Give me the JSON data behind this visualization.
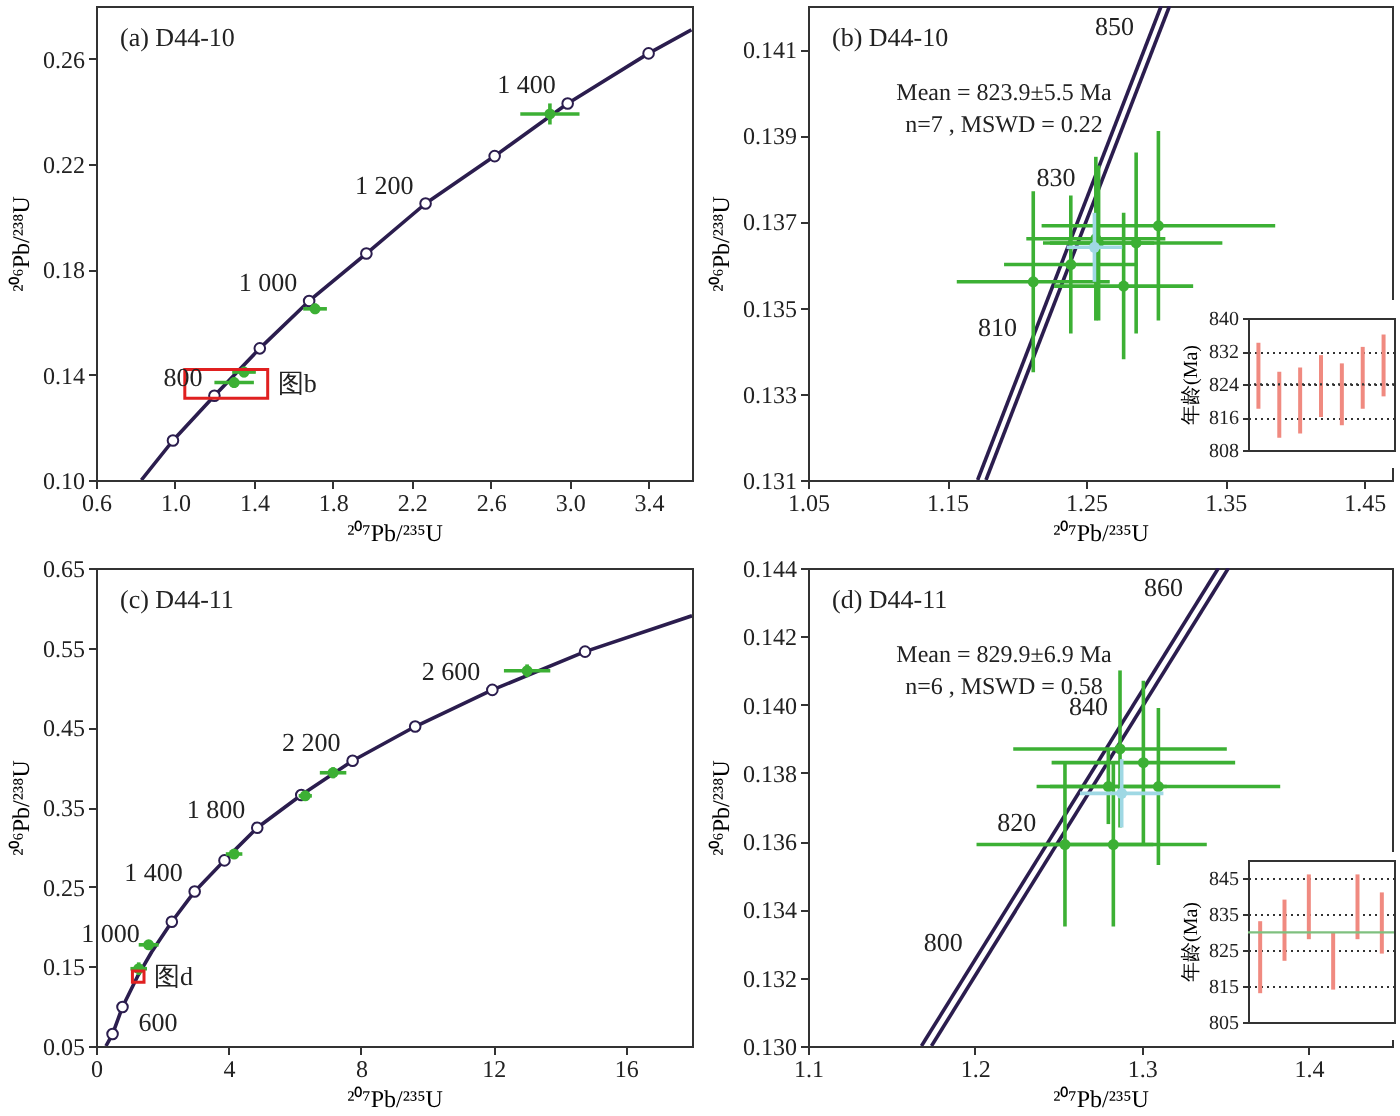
{
  "chart_data": [
    {
      "type": "line",
      "title": "(a) D44-10",
      "xlabel": "²⁰⁷Pb/²³⁵U",
      "ylabel": "²⁰⁶Pb/²³⁸U",
      "xlim": [
        0.6,
        3.62
      ],
      "ylim": [
        0.1,
        0.28
      ],
      "xticks": [
        0.6,
        {
          "value": 1,
          "label": "1.0"
        },
        1.4,
        1.8,
        2.2,
        2.6,
        {
          "value": 3,
          "label": "3.0"
        },
        3.4
      ],
      "yticks": [
        {
          "value": 0.1,
          "label": "0.10"
        },
        0.14,
        0.18,
        0.22,
        0.26
      ],
      "series": [
        {
          "type": "line",
          "color": "#2b1d4e",
          "x": [
            0.83,
            0.99,
            1.2,
            1.43,
            1.68,
            1.97,
            2.27,
            2.62,
            2.99,
            3.4,
            3.617
          ],
          "values": [
            0.1,
            0.115,
            0.132,
            0.15,
            0.168,
            0.186,
            0.205,
            0.223,
            0.243,
            0.262,
            0.271
          ]
        },
        {
          "type": "scatter",
          "marker": "circle",
          "color": "#2b1d4e",
          "x": [
            0.99,
            1.2,
            1.43,
            1.68,
            1.97,
            2.27,
            2.62,
            2.99,
            3.4
          ],
          "values": [
            0.115,
            0.132,
            0.15,
            0.168,
            0.186,
            0.205,
            0.223,
            0.243,
            0.262
          ]
        },
        {
          "type": "scatter",
          "color": "#3cb034",
          "x": [
            2.9,
            1.71,
            1.3,
            1.35
          ],
          "values": [
            0.239,
            0.165,
            0.137,
            0.141
          ],
          "xerrors": [
            0.15,
            0.06,
            0.1,
            0.06
          ],
          "errors": [
            0.004,
            0.002,
            0.002,
            0.002
          ]
        }
      ],
      "annotations": [
        "图b",
        {
          "text": "800",
          "x": 1.2,
          "y": 0.132
        },
        {
          "text": "1 000",
          "x": 1.68,
          "y": 0.168
        },
        {
          "text": "1 200",
          "x": 2.27,
          "y": 0.205
        },
        {
          "text": "1 400",
          "x": 2.99,
          "y": 0.243
        }
      ]
    },
    {
      "type": "line",
      "title": "(b) D44-10",
      "xlabel": "²⁰⁷Pb/²³⁵U",
      "ylabel": "²⁰⁶Pb/²³⁸U",
      "xlim": [
        1.05,
        1.47
      ],
      "ylim": [
        0.131,
        0.142
      ],
      "xticks": [
        1.05,
        1.15,
        1.25,
        1.35,
        1.45
      ],
      "yticks": [
        0.131,
        0.133,
        0.135,
        0.137,
        0.139,
        0.141
      ],
      "series": [
        {
          "type": "line",
          "color": "#2b1d4e",
          "x": [
            1.172,
            1.304
          ],
          "values": [
            0.131,
            0.142
          ]
        },
        {
          "type": "line",
          "color": "#2b1d4e",
          "x": [
            1.178,
            1.31
          ],
          "values": [
            0.131,
            0.142
          ]
        },
        {
          "type": "scatter",
          "color": "#3cb034",
          "x": [
            1.212,
            1.286,
            1.257,
            1.302,
            1.239,
            1.277,
            1.259
          ],
          "values": [
            0.1356,
            0.1365,
            0.1366,
            0.1369,
            0.136,
            0.1355,
            0.1365
          ],
          "xerrors": [
            0.055,
            0.062,
            0.05,
            0.084,
            0.048,
            0.05,
            0.04
          ],
          "errors": [
            0.0021,
            0.0021,
            0.0019,
            0.0022,
            0.0016,
            0.0017,
            0.0018
          ]
        },
        {
          "type": "scatter",
          "color": "#9fd8e4",
          "x": [
            1.256
          ],
          "values": [
            0.1364
          ],
          "xerrors": [
            0.02
          ],
          "errors": [
            0.0008
          ]
        }
      ],
      "annotations": [
        "Mean = 823.9±5.5 Ma",
        "n=7 , MSWD = 0.22",
        {
          "text": "850",
          "x": 1.293,
          "y": 0.1411
        },
        {
          "text": "830",
          "x": 1.251,
          "y": 0.1376
        },
        {
          "text": "810",
          "x": 1.209,
          "y": 0.1341
        }
      ]
    },
    {
      "type": "line",
      "title": "(c) D44-11",
      "xlabel": "²⁰⁷Pb/²³⁵U",
      "ylabel": "²⁰⁶Pb/²³⁸U",
      "xlim": [
        0,
        18
      ],
      "ylim": [
        0.05,
        0.65
      ],
      "xticks": [
        0,
        4,
        8,
        12,
        16
      ],
      "yticks": [
        0.05,
        0.15,
        0.25,
        0.35,
        0.45,
        0.55,
        0.65
      ],
      "series": [
        {
          "type": "line",
          "color": "#2b1d4e",
          "x": [
            0.3,
            0.5,
            0.8,
            1.25,
            1.68,
            2.29,
            2.98,
            3.88,
            4.87,
            6.2,
            7.75,
            9.64,
            11.97,
            14.77,
            18
          ],
          "values": [
            0.05,
            0.065,
            0.099,
            0.137,
            0.168,
            0.206,
            0.244,
            0.283,
            0.324,
            0.365,
            0.408,
            0.451,
            0.497,
            0.545,
            0.59
          ]
        },
        {
          "type": "scatter",
          "marker": "circle",
          "color": "#2b1d4e",
          "x": [
            0.5,
            0.8,
            2.29,
            2.98,
            3.88,
            4.87,
            6.2,
            7.75,
            9.64,
            11.97,
            14.77
          ],
          "values": [
            0.065,
            0.099,
            0.206,
            0.244,
            0.283,
            0.324,
            0.365,
            0.408,
            0.451,
            0.497,
            0.545
          ]
        },
        {
          "type": "scatter",
          "color": "#3cb034",
          "x": [
            1.59,
            1.29,
            4.17,
            6.32,
            7.16,
            13.02
          ],
          "values": [
            0.177,
            0.147,
            0.291,
            0.364,
            0.393,
            0.521
          ],
          "xerrors": [
            0.3,
            0.25,
            0.25,
            0.2,
            0.4,
            0.7
          ],
          "errors": [
            0.006,
            0.008,
            0.004,
            0.004,
            0.007,
            0.008
          ]
        }
      ],
      "annotations": [
        "图d",
        {
          "text": "600",
          "x": 0.8,
          "y": 0.099
        },
        {
          "text": "1 000",
          "x": 1.68,
          "y": 0.168
        },
        {
          "text": "1 400",
          "x": 2.98,
          "y": 0.244
        },
        {
          "text": "1 800",
          "x": 4.87,
          "y": 0.324
        },
        {
          "text": "2 200",
          "x": 7.75,
          "y": 0.408
        },
        {
          "text": "2 600",
          "x": 11.97,
          "y": 0.497
        }
      ]
    },
    {
      "type": "line",
      "title": "(d) D44-11",
      "xlabel": "²⁰⁷Pb/²³⁵U",
      "ylabel": "²⁰⁶Pb/²³⁸U",
      "xlim": [
        1.1,
        1.45
      ],
      "ylim": [
        0.13,
        0.144
      ],
      "xticks": [
        1.1,
        1.2,
        1.3,
        1.4
      ],
      "yticks": [
        {
          "value": 0.13,
          "label": "0.130"
        },
        0.132,
        0.134,
        0.136,
        0.138,
        {
          "value": 0.14,
          "label": "0.140"
        },
        0.142,
        0.144
      ],
      "series": [
        {
          "type": "line",
          "color": "#2b1d4e",
          "x": [
            1.168,
            1.346
          ],
          "values": [
            0.13,
            0.144
          ]
        },
        {
          "type": "line",
          "color": "#2b1d4e",
          "x": [
            1.174,
            1.352
          ],
          "values": [
            0.13,
            0.144
          ]
        },
        {
          "type": "scatter",
          "color": "#3cb034",
          "x": [
            1.254,
            1.287,
            1.31,
            1.283,
            1.301,
            1.28
          ],
          "values": [
            0.1359,
            0.1387,
            0.1376,
            0.1359,
            0.1383,
            0.1376
          ],
          "xerrors": [
            0.053,
            0.064,
            0.073,
            0.056,
            0.055,
            0.035
          ],
          "errors": [
            0.0024,
            0.0023,
            0.0023,
            0.0024,
            0.0024,
            0.0011
          ]
        },
        {
          "type": "scatter",
          "color": "#9fd8e4",
          "x": [
            1.288
          ],
          "values": [
            0.1374
          ],
          "xerrors": [
            0.025
          ],
          "errors": [
            0.001
          ]
        }
      ],
      "annotations": [
        "Mean = 829.9±6.9 Ma",
        "n=6 , MSWD = 0.58",
        {
          "text": "860",
          "x": 1.332,
          "y": 0.1429
        },
        {
          "text": "840",
          "x": 1.287,
          "y": 0.1394
        },
        {
          "text": "820",
          "x": 1.244,
          "y": 0.136
        },
        {
          "text": "800",
          "x": 1.2,
          "y": 0.1325
        }
      ]
    },
    {
      "type": "bar",
      "ylabel": "年龄(Ma)",
      "categories": [
        null,
        null,
        null,
        null,
        null,
        null,
        null
      ],
      "ylim": [
        808,
        840
      ],
      "yticks": [
        808,
        816,
        824,
        832,
        840
      ],
      "grid": "y",
      "tick_labels": "y",
      "series": [
        {
          "color": "#f08a80",
          "base": [
            818,
            811,
            812,
            816,
            814,
            818,
            821
          ],
          "values": [
            16,
            16,
            16,
            15,
            15,
            15,
            15
          ]
        }
      ],
      "ref_lines": [
        {
          "axis": "y",
          "value": 823.9,
          "line_style": "dotted",
          "color": "#333333"
        }
      ]
    },
    {
      "type": "bar",
      "ylabel": "年龄(Ma)",
      "categories": [
        null,
        null,
        null,
        null,
        null,
        null
      ],
      "ylim": [
        805,
        850
      ],
      "yticks": [
        805,
        815,
        825,
        835,
        845
      ],
      "grid": "y",
      "tick_labels": "y",
      "series": [
        {
          "color": "#f08a80",
          "base": [
            813,
            822,
            828,
            814,
            828,
            824
          ],
          "values": [
            20,
            17,
            18,
            16,
            18,
            17
          ]
        }
      ],
      "ref_lines": [
        {
          "axis": "y",
          "value": 829.9,
          "line_style": "solid",
          "color": "#7fc07f"
        }
      ]
    }
  ]
}
